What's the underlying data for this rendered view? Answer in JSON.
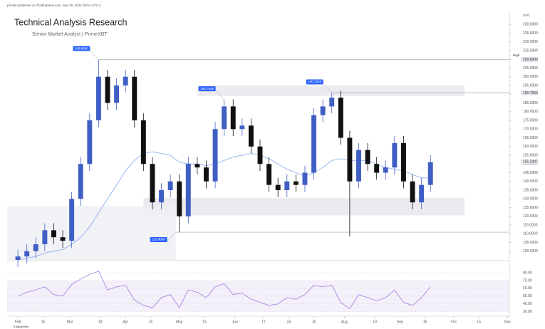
{
  "chart_data": {
    "type": "candlestick",
    "header": "prinskt published on TradingView.com, Sep 20, 2024 08:51 UTC-4",
    "title": "Technical Analysis Research",
    "subtitle": "Senior Market Analyst | PrimeXBT",
    "currency": "USD",
    "footer": "TradingView",
    "up_color": "#3f5fc4",
    "down_color": "#111111",
    "x": [
      0,
      5,
      10,
      15,
      20,
      25,
      30,
      35,
      40,
      45,
      50,
      55,
      60,
      65,
      70,
      75,
      80,
      85,
      90,
      95,
      100,
      105,
      110,
      115,
      120,
      125,
      130,
      135,
      140,
      145,
      150,
      155,
      160,
      165,
      170,
      175,
      180,
      185,
      190,
      195,
      200,
      205,
      210,
      215,
      220,
      225,
      230
    ],
    "open": [
      95,
      97,
      100,
      104,
      112,
      108,
      106,
      130,
      150,
      175,
      200,
      185,
      195,
      200,
      175,
      150,
      128,
      135,
      140,
      120,
      150,
      148,
      140,
      170,
      183,
      170,
      172,
      160,
      150,
      138,
      135,
      140,
      138,
      145,
      178,
      183,
      188,
      165,
      140,
      158,
      150,
      145,
      148,
      162,
      140,
      128,
      138
    ],
    "high": [
      101,
      104,
      108,
      116,
      116,
      112,
      134,
      154,
      179,
      209.8,
      204,
      199,
      204,
      204,
      179,
      154,
      139,
      144,
      144,
      154,
      154,
      152,
      174,
      186.8,
      187,
      176,
      176,
      164,
      154,
      142,
      144,
      144,
      149,
      182,
      187,
      190.7,
      192,
      169,
      162,
      162,
      154,
      152,
      166,
      166,
      144,
      142,
      155
    ],
    "low": [
      91,
      93,
      96,
      100,
      104,
      102,
      102,
      126,
      146,
      171,
      181,
      181,
      191,
      171,
      146,
      124,
      124,
      131,
      110.9,
      116,
      144,
      136,
      136,
      166,
      166,
      166,
      156,
      146,
      134,
      131,
      131,
      134,
      134,
      141,
      174,
      179,
      161,
      108.5,
      136,
      146,
      141,
      141,
      144,
      136,
      124,
      124,
      134
    ],
    "close": [
      97,
      100,
      104,
      112,
      108,
      106,
      130,
      150,
      175,
      200,
      185,
      195,
      200,
      175,
      150,
      128,
      135,
      140,
      120,
      150,
      148,
      140,
      170,
      183,
      170,
      172,
      160,
      150,
      138,
      135,
      140,
      138,
      145,
      178,
      183,
      188,
      165,
      140,
      158,
      150,
      145,
      148,
      162,
      140,
      128,
      138,
      151
    ],
    "ma": {
      "color": "#8fb0f0",
      "values": [
        95,
        96,
        97,
        99,
        100,
        101,
        104,
        108,
        114,
        122,
        130,
        138,
        146,
        152,
        156,
        157,
        156,
        155,
        151,
        150,
        150,
        149,
        150,
        152,
        154,
        155,
        156,
        155,
        153,
        150,
        147,
        145,
        143,
        145,
        148,
        152,
        153,
        152,
        152,
        152,
        150,
        148,
        147,
        146,
        144,
        142,
        142
      ]
    },
    "xlim": [
      -6,
      274
    ],
    "xticks": [
      {
        "value": 0,
        "label": "Feb"
      },
      {
        "value": 14,
        "label": "15"
      },
      {
        "value": 29,
        "label": "Mar"
      },
      {
        "value": 46,
        "label": "18"
      },
      {
        "value": 60,
        "label": "Apr"
      },
      {
        "value": 74,
        "label": "15"
      },
      {
        "value": 90,
        "label": "May"
      },
      {
        "value": 104,
        "label": "15"
      },
      {
        "value": 121,
        "label": "Jun"
      },
      {
        "value": 137,
        "label": "17"
      },
      {
        "value": 151,
        "label": "Jul"
      },
      {
        "value": 165,
        "label": "15"
      },
      {
        "value": 182,
        "label": "Aug"
      },
      {
        "value": 199,
        "label": "19"
      },
      {
        "value": 213,
        "label": "Sep"
      },
      {
        "value": 227,
        "label": "16"
      },
      {
        "value": 243,
        "label": "Oct"
      },
      {
        "value": 257,
        "label": "15"
      },
      {
        "value": 273,
        "label": "Nov"
      }
    ],
    "ylim": [
      95,
      235
    ],
    "yticks": [
      {
        "value": 230,
        "label": "230.0000"
      },
      {
        "value": 225,
        "label": "225.0000"
      },
      {
        "value": 220,
        "label": "220.0000"
      },
      {
        "value": 215,
        "label": "215.0000"
      },
      {
        "value": 210,
        "label": "210.0000"
      },
      {
        "value": 205,
        "label": "205.0000"
      },
      {
        "value": 200,
        "label": "200.0000"
      },
      {
        "value": 195,
        "label": "195.0000"
      },
      {
        "value": 190,
        "label": "190.0000"
      },
      {
        "value": 185,
        "label": "185.0000"
      },
      {
        "value": 180,
        "label": "180.0000"
      },
      {
        "value": 175,
        "label": "175.0000"
      },
      {
        "value": 170,
        "label": "170.0000"
      },
      {
        "value": 165,
        "label": "165.0000"
      },
      {
        "value": 160,
        "label": "160.0000"
      },
      {
        "value": 155,
        "label": "155.0000"
      },
      {
        "value": 150,
        "label": "150.0000"
      },
      {
        "value": 145,
        "label": "145.0000"
      },
      {
        "value": 140,
        "label": "140.0000"
      },
      {
        "value": 135,
        "label": "135.0000"
      },
      {
        "value": 130,
        "label": "130.0000"
      },
      {
        "value": 125,
        "label": "125.0000"
      },
      {
        "value": 120,
        "label": "120.0000"
      },
      {
        "value": 115,
        "label": "115.0000"
      },
      {
        "value": 110,
        "label": "110.0000"
      },
      {
        "value": 105,
        "label": "105.0000"
      },
      {
        "value": 100,
        "label": "100.0000"
      }
    ],
    "price_markers": [
      {
        "name": "High",
        "value": 209.8,
        "label": "209.8000"
      },
      {
        "value": 190.7263,
        "label": "190.7263"
      },
      {
        "value": 151.2447,
        "label": "151.2447"
      }
    ],
    "annotations": [
      {
        "x": 45,
        "value": 209.8,
        "label": "209.8000",
        "side": "above"
      },
      {
        "x": 115,
        "value": 186.7648,
        "label": "186.7648",
        "side": "above"
      },
      {
        "x": 175,
        "value": 190.7263,
        "label": "190.7263",
        "side": "above"
      },
      {
        "x": 88,
        "value": 110.9,
        "label": "110.9000",
        "side": "below"
      }
    ],
    "levels": [
      {
        "x": [
          45,
          274
        ],
        "value": 209.8
      },
      {
        "x": [
          175,
          274
        ],
        "value": 190.7263
      },
      {
        "x": [
          88,
          274
        ],
        "value": 110.9
      }
    ],
    "zones": [
      {
        "x": [
          70,
          249
        ],
        "y": [
          120.5,
          130.5
        ]
      },
      {
        "x": [
          100,
          249
        ],
        "y": [
          189,
          195
        ]
      },
      {
        "x": [
          -6,
          88
        ],
        "y": [
          95,
          126
        ]
      }
    ],
    "rsi": {
      "color": "#9c7de0",
      "values": [
        50,
        55,
        58,
        62,
        52,
        50,
        65,
        72,
        78,
        82,
        58,
        62,
        64,
        45,
        38,
        35,
        48,
        52,
        35,
        58,
        55,
        48,
        62,
        66,
        52,
        54,
        46,
        42,
        38,
        40,
        48,
        46,
        52,
        64,
        62,
        64,
        42,
        34,
        52,
        48,
        44,
        48,
        58,
        42,
        38,
        48,
        62
      ],
      "ylim": [
        26,
        92
      ],
      "yticks": [
        {
          "value": 80,
          "label": "80.00"
        },
        {
          "value": 70,
          "label": "70.00"
        },
        {
          "value": 60,
          "label": "60.00"
        },
        {
          "value": 50,
          "label": "50.00"
        },
        {
          "value": 40,
          "label": "40.00"
        },
        {
          "value": 30,
          "label": "30.00"
        }
      ]
    }
  }
}
